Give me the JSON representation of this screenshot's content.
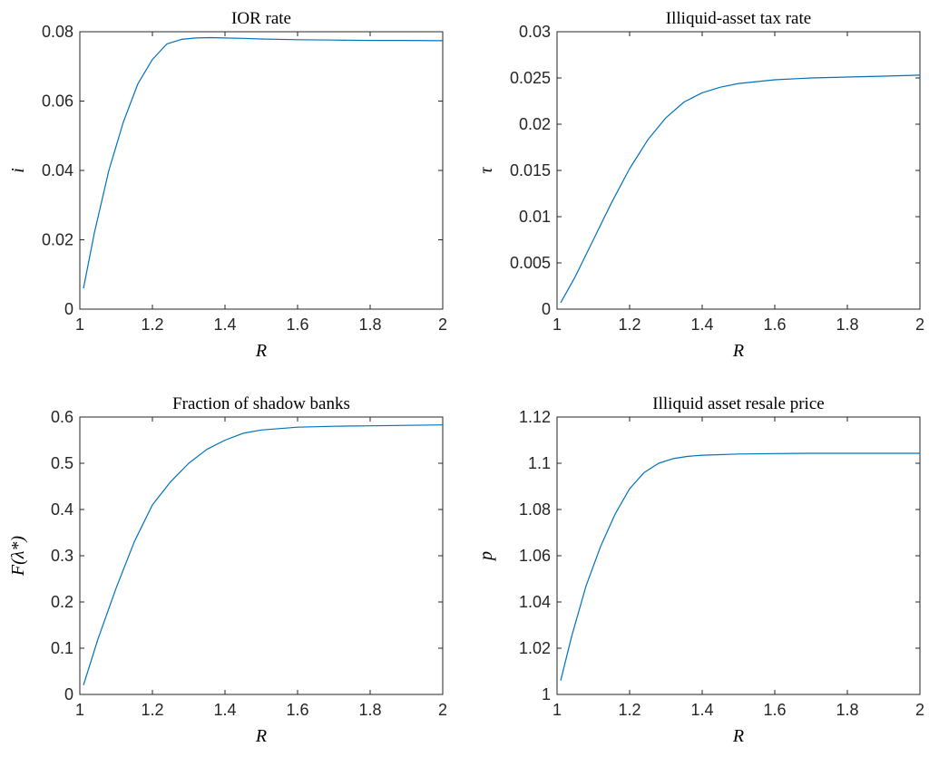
{
  "line_color": "#0072BD",
  "chart_data": [
    {
      "type": "line",
      "title": "IOR rate",
      "xlabel": "R",
      "ylabel": "i",
      "xlim": [
        1,
        2
      ],
      "ylim": [
        0,
        0.08
      ],
      "xticks": [
        "1",
        "1.2",
        "1.4",
        "1.6",
        "1.8",
        "2"
      ],
      "yticks": [
        "0",
        "0.02",
        "0.04",
        "0.06",
        "0.08"
      ],
      "grid": false,
      "series": [
        {
          "x": [
            1.01,
            1.04,
            1.08,
            1.12,
            1.16,
            1.2,
            1.24,
            1.28,
            1.32,
            1.36,
            1.4,
            1.45,
            1.5,
            1.6,
            1.7,
            1.8,
            1.9,
            2.0
          ],
          "y": [
            0.006,
            0.022,
            0.04,
            0.054,
            0.065,
            0.072,
            0.0765,
            0.0778,
            0.0782,
            0.0783,
            0.0782,
            0.0781,
            0.0779,
            0.0777,
            0.0776,
            0.0775,
            0.0775,
            0.0774
          ]
        }
      ]
    },
    {
      "type": "line",
      "title": "Illiquid-asset tax rate",
      "xlabel": "R",
      "ylabel": "τ",
      "xlim": [
        1,
        2
      ],
      "ylim": [
        0,
        0.03
      ],
      "xticks": [
        "1",
        "1.2",
        "1.4",
        "1.6",
        "1.8",
        "2"
      ],
      "yticks": [
        "0",
        "0.005",
        "0.01",
        "0.015",
        "0.02",
        "0.025",
        "0.03"
      ],
      "grid": false,
      "series": [
        {
          "x": [
            1.01,
            1.05,
            1.1,
            1.15,
            1.2,
            1.25,
            1.3,
            1.35,
            1.4,
            1.45,
            1.5,
            1.6,
            1.7,
            1.8,
            1.9,
            2.0
          ],
          "y": [
            0.0007,
            0.0035,
            0.0075,
            0.0115,
            0.0152,
            0.0183,
            0.0207,
            0.0224,
            0.0234,
            0.024,
            0.0244,
            0.0248,
            0.025,
            0.0251,
            0.0252,
            0.0253
          ]
        }
      ]
    },
    {
      "type": "line",
      "title": "Fraction of shadow banks",
      "xlabel": "R",
      "ylabel": "F(λ*)",
      "xlim": [
        1,
        2
      ],
      "ylim": [
        0,
        0.6
      ],
      "xticks": [
        "1",
        "1.2",
        "1.4",
        "1.6",
        "1.8",
        "2"
      ],
      "yticks": [
        "0",
        "0.1",
        "0.2",
        "0.3",
        "0.4",
        "0.5",
        "0.6"
      ],
      "grid": false,
      "series": [
        {
          "x": [
            1.01,
            1.05,
            1.1,
            1.15,
            1.2,
            1.25,
            1.3,
            1.35,
            1.4,
            1.45,
            1.5,
            1.6,
            1.7,
            1.8,
            1.9,
            2.0
          ],
          "y": [
            0.02,
            0.12,
            0.23,
            0.33,
            0.41,
            0.46,
            0.5,
            0.53,
            0.55,
            0.565,
            0.572,
            0.578,
            0.58,
            0.581,
            0.582,
            0.583
          ]
        }
      ]
    },
    {
      "type": "line",
      "title": "Illiquid asset resale price",
      "xlabel": "R",
      "ylabel": "p",
      "xlim": [
        1,
        2
      ],
      "ylim": [
        1,
        1.12
      ],
      "xticks": [
        "1",
        "1.2",
        "1.4",
        "1.6",
        "1.8",
        "2"
      ],
      "yticks": [
        "1",
        "1.02",
        "1.04",
        "1.06",
        "1.08",
        "1.1",
        "1.12"
      ],
      "grid": false,
      "series": [
        {
          "x": [
            1.01,
            1.04,
            1.08,
            1.12,
            1.16,
            1.2,
            1.24,
            1.28,
            1.32,
            1.36,
            1.4,
            1.5,
            1.6,
            1.7,
            1.8,
            1.9,
            2.0
          ],
          "y": [
            1.006,
            1.025,
            1.047,
            1.064,
            1.078,
            1.089,
            1.096,
            1.1,
            1.102,
            1.103,
            1.1035,
            1.104,
            1.1042,
            1.1043,
            1.1043,
            1.1043,
            1.1043
          ]
        }
      ]
    }
  ]
}
